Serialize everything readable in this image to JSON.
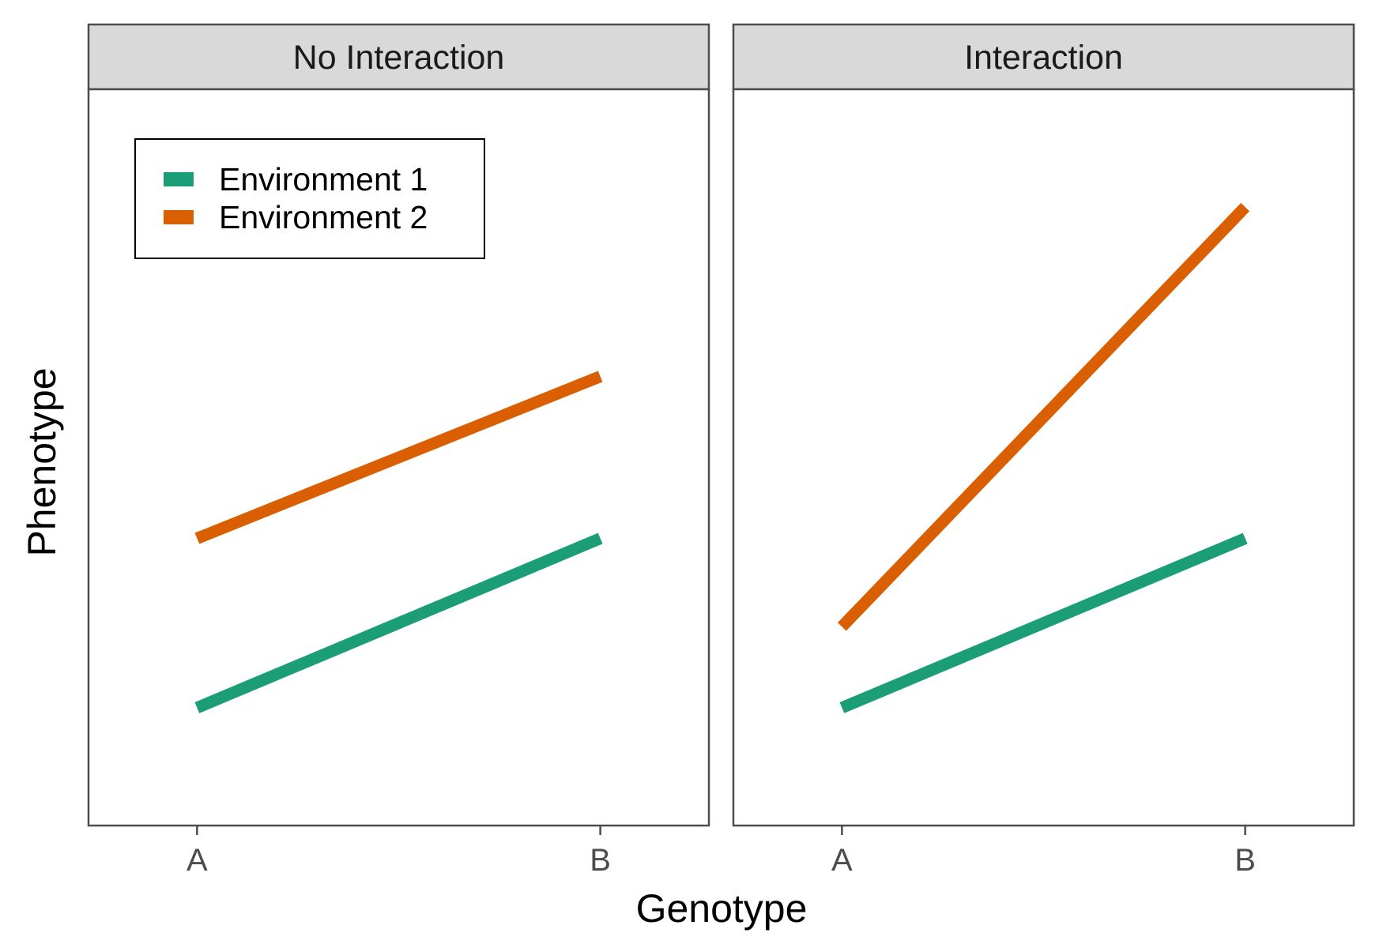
{
  "chart_data": {
    "type": "line",
    "x_label": "Genotype",
    "y_label": "Phenotype",
    "categories": [
      "A",
      "B"
    ],
    "y_ticks_shown": false,
    "grid": false,
    "ylim": [
      0,
      10
    ],
    "legend": {
      "placement": "inside top-left of first panel",
      "entries": [
        {
          "label": "Environment 1",
          "color": "#1b9e77"
        },
        {
          "label": "Environment 2",
          "color": "#d95f02"
        }
      ]
    },
    "panels": [
      {
        "title": "No Interaction",
        "series": [
          {
            "name": "Environment 1",
            "color": "#1b9e77",
            "values": [
              1.6,
              3.9
            ]
          },
          {
            "name": "Environment 2",
            "color": "#d95f02",
            "values": [
              3.9,
              6.1
            ]
          }
        ]
      },
      {
        "title": "Interaction",
        "series": [
          {
            "name": "Environment 1",
            "color": "#1b9e77",
            "values": [
              1.6,
              3.9
            ]
          },
          {
            "name": "Environment 2",
            "color": "#d95f02",
            "values": [
              2.7,
              8.4
            ]
          }
        ]
      }
    ]
  }
}
